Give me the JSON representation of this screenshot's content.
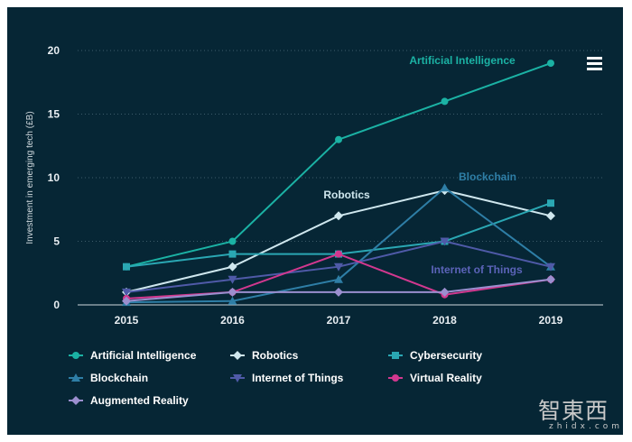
{
  "chart_data": {
    "type": "line",
    "title": "",
    "xlabel": "",
    "ylabel": "Investment in emerging tech (£B)",
    "x": [
      "2015",
      "2016",
      "2017",
      "2018",
      "2019"
    ],
    "yticks": [
      "0",
      "5",
      "10",
      "15",
      "20"
    ],
    "ylim": [
      0,
      20
    ],
    "grid": true,
    "legend_position": "bottom",
    "series": [
      {
        "name": "Artificial Intelligence",
        "values": [
          3,
          5,
          13,
          16,
          19
        ],
        "color": "#1bb2a4",
        "marker": "circle"
      },
      {
        "name": "Robotics",
        "values": [
          1,
          3,
          7,
          9,
          7
        ],
        "color": "#cfe7ee",
        "marker": "diamond"
      },
      {
        "name": "Cybersecurity",
        "values": [
          3,
          4,
          4,
          5,
          8
        ],
        "color": "#2aa7b3",
        "marker": "square"
      },
      {
        "name": "Blockchain",
        "values": [
          0.2,
          0.3,
          2,
          9.2,
          3
        ],
        "color": "#2e7ea6",
        "marker": "triangle"
      },
      {
        "name": "Internet of Things",
        "values": [
          1,
          2,
          3,
          5,
          3
        ],
        "color": "#4f5aa8",
        "marker": "triangle-down"
      },
      {
        "name": "Virtual Reality",
        "values": [
          0.5,
          1,
          4,
          0.8,
          2
        ],
        "color": "#d2388f",
        "marker": "circle"
      },
      {
        "name": "Augmented Reality",
        "values": [
          0.3,
          1,
          1,
          1,
          2
        ],
        "color": "#9b8fcf",
        "marker": "diamond"
      }
    ],
    "annotations": [
      {
        "text": "Artificial Intelligence",
        "color": "#1bb2a4"
      },
      {
        "text": "Robotics",
        "color": "#cfe7ee"
      },
      {
        "text": "Blockchain",
        "color": "#2e7ea6"
      },
      {
        "text": "Internet of Things",
        "color": "#5b63b8"
      }
    ]
  },
  "watermark": {
    "text": "智東西",
    "sub": "zhidx.com"
  }
}
